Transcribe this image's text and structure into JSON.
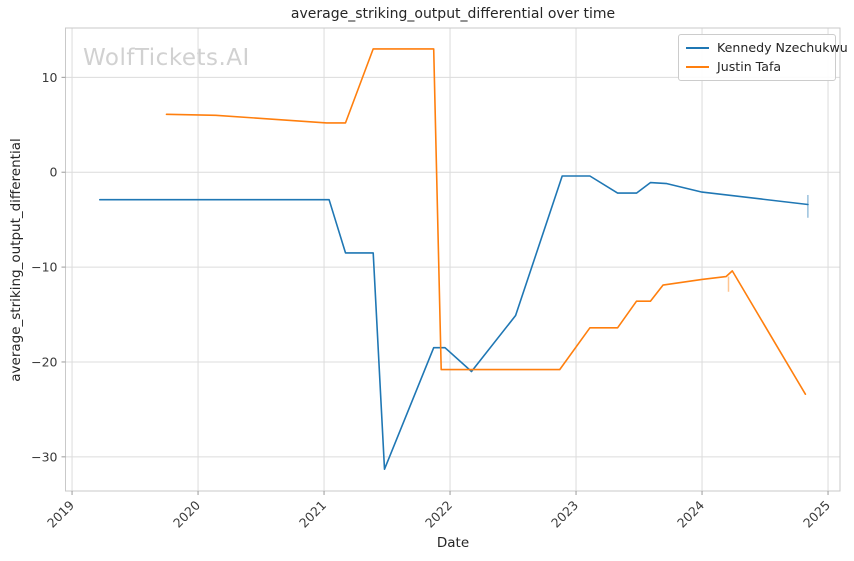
{
  "chart_data": {
    "type": "line",
    "title": "average_striking_output_differential over time",
    "xlabel": "Date",
    "ylabel": "average_striking_output_differential",
    "watermark": "WolfTickets.AI",
    "grid": true,
    "legend_position": "upper right",
    "xlim": [
      2018.948,
      2025.095
    ],
    "ylim": [
      -33.6,
      15.2
    ],
    "x_ticks": [
      {
        "value": 2019,
        "label": "2019"
      },
      {
        "value": 2020,
        "label": "2020"
      },
      {
        "value": 2021,
        "label": "2021"
      },
      {
        "value": 2022,
        "label": "2022"
      },
      {
        "value": 2023,
        "label": "2023"
      },
      {
        "value": 2024,
        "label": "2024"
      },
      {
        "value": 2025,
        "label": "2025"
      }
    ],
    "y_ticks": [
      {
        "value": 10,
        "label": "10"
      },
      {
        "value": 0,
        "label": "0"
      },
      {
        "value": -10,
        "label": "−10"
      },
      {
        "value": -20,
        "label": "−20"
      },
      {
        "value": -30,
        "label": "−30"
      }
    ],
    "series": [
      {
        "name": "Kennedy Nzechukwu",
        "color": "#1f77b4",
        "points": [
          [
            2019.22,
            -2.9
          ],
          [
            2021.04,
            -2.9
          ],
          [
            2021.17,
            -8.5
          ],
          [
            2021.39,
            -8.5
          ],
          [
            2021.48,
            -31.3
          ],
          [
            2021.87,
            -18.5
          ],
          [
            2021.96,
            -18.5
          ],
          [
            2022.17,
            -21.0
          ],
          [
            2022.52,
            -15.1
          ],
          [
            2022.89,
            -0.4
          ],
          [
            2023.11,
            -0.4
          ],
          [
            2023.33,
            -2.2
          ],
          [
            2023.48,
            -2.2
          ],
          [
            2023.59,
            -1.1
          ],
          [
            2023.72,
            -1.2
          ],
          [
            2024.0,
            -2.1
          ],
          [
            2024.84,
            -3.4
          ]
        ],
        "end_tick": {
          "x": 2024.84,
          "y": [
            -2.4,
            -4.8
          ]
        }
      },
      {
        "name": "Justin Tafa",
        "color": "#ff7f0e",
        "points": [
          [
            2019.75,
            6.1
          ],
          [
            2020.14,
            6.0
          ],
          [
            2021.02,
            5.2
          ],
          [
            2021.17,
            5.2
          ],
          [
            2021.39,
            13.0
          ],
          [
            2021.87,
            13.0
          ],
          [
            2021.93,
            -20.8
          ],
          [
            2022.87,
            -20.8
          ],
          [
            2023.11,
            -16.4
          ],
          [
            2023.33,
            -16.4
          ],
          [
            2023.48,
            -13.6
          ],
          [
            2023.59,
            -13.6
          ],
          [
            2023.69,
            -11.9
          ],
          [
            2024.0,
            -11.3
          ],
          [
            2024.19,
            -11.0
          ],
          [
            2024.24,
            -10.4
          ],
          [
            2024.82,
            -23.4
          ]
        ],
        "end_tick": {
          "x": 2024.21,
          "y": [
            -11.0,
            -12.6
          ]
        }
      }
    ]
  },
  "colors": {
    "grid": "#dcdcdc",
    "spine": "#c9c9c9",
    "tick": "#9a9a9a",
    "tick_text": "#3a3a3a",
    "text": "#262626",
    "watermark": "#d1d1d1"
  }
}
